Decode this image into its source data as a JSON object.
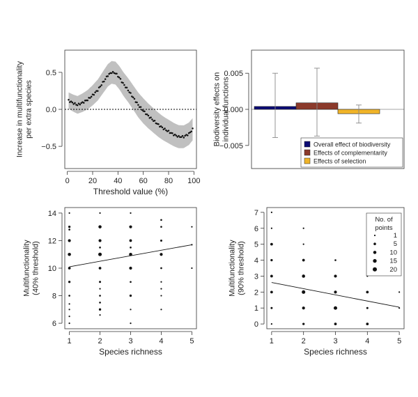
{
  "chart_data": [
    {
      "id": "a",
      "type": "line",
      "title": "",
      "xlabel": "Threshold value (%)",
      "ylabel": [
        "Increase in multifunctionality",
        "per extra species"
      ],
      "xlim": [
        -2,
        102
      ],
      "ylim": [
        -0.8,
        0.8
      ],
      "xticks": [
        0,
        20,
        40,
        60,
        80,
        100
      ],
      "yticks": [
        -0.5,
        0.0,
        0.5
      ],
      "ytick_labels": [
        "−0.5",
        "0.0",
        "0.5"
      ],
      "reference_line": 0,
      "band_color": "#c0c0c0",
      "point_color": "#111111",
      "knots": [
        [
          1,
          0.12
        ],
        [
          4,
          0.09
        ],
        [
          8,
          0.06
        ],
        [
          12,
          0.09
        ],
        [
          16,
          0.13
        ],
        [
          20,
          0.19
        ],
        [
          24,
          0.26
        ],
        [
          28,
          0.36
        ],
        [
          32,
          0.46
        ],
        [
          35,
          0.5
        ],
        [
          38,
          0.49
        ],
        [
          41,
          0.43
        ],
        [
          44,
          0.35
        ],
        [
          48,
          0.26
        ],
        [
          52,
          0.16
        ],
        [
          56,
          0.06
        ],
        [
          60,
          -0.02
        ],
        [
          64,
          -0.09
        ],
        [
          68,
          -0.15
        ],
        [
          72,
          -0.21
        ],
        [
          76,
          -0.26
        ],
        [
          80,
          -0.3
        ],
        [
          84,
          -0.34
        ],
        [
          88,
          -0.37
        ],
        [
          92,
          -0.37
        ],
        [
          96,
          -0.33
        ],
        [
          99,
          -0.27
        ]
      ],
      "band_halfwidth": [
        [
          1,
          0.11
        ],
        [
          30,
          0.15
        ],
        [
          60,
          0.17
        ],
        [
          99,
          0.15
        ]
      ]
    },
    {
      "id": "b",
      "type": "bar",
      "ylabel": [
        "Biodiversity effects on",
        "individual functions"
      ],
      "ylim": [
        -0.0082,
        0.0082
      ],
      "yticks": [
        -0.005,
        0.0,
        0.005
      ],
      "ytick_labels": [
        "−0.005",
        "0.000",
        "0.005"
      ],
      "reference_line": 0,
      "series": [
        {
          "name": "Overall effect of biodiversity",
          "value": 0.0004,
          "err_low": -0.0039,
          "err_high": 0.005,
          "color": "#0b0b74"
        },
        {
          "name": "Effects of complementarity",
          "value": 0.0009,
          "err_low": -0.0037,
          "err_high": 0.0057,
          "color": "#8b3a2b"
        },
        {
          "name": "Effects of selection",
          "value": -0.0006,
          "err_low": -0.0019,
          "err_high": 0.0006,
          "color": "#f0b429"
        }
      ],
      "legend_position": "bottom-right"
    },
    {
      "id": "c",
      "type": "scatter",
      "xlabel": "Species richness",
      "ylabel": [
        "Multifunctionality",
        "(40% threshold)"
      ],
      "xlim": [
        0.85,
        5.15
      ],
      "ylim": [
        5.6,
        14.4
      ],
      "xticks": [
        1,
        2,
        3,
        4,
        5
      ],
      "yticks": [
        6,
        8,
        10,
        12,
        14
      ],
      "fit_line": [
        [
          1,
          10.1
        ],
        [
          5,
          11.7
        ]
      ],
      "points": [
        [
          1,
          14,
          1
        ],
        [
          1,
          13,
          4
        ],
        [
          1,
          12.8,
          2
        ],
        [
          1,
          12,
          8
        ],
        [
          1,
          11,
          10
        ],
        [
          1,
          10,
          6
        ],
        [
          1,
          9,
          4
        ],
        [
          1,
          8,
          2
        ],
        [
          1,
          7.4,
          1
        ],
        [
          1,
          7,
          1
        ],
        [
          1,
          6.5,
          1
        ],
        [
          1,
          6,
          1
        ],
        [
          2,
          14,
          1
        ],
        [
          2,
          13,
          10
        ],
        [
          2,
          12,
          8
        ],
        [
          2,
          11.5,
          2
        ],
        [
          2,
          11,
          13
        ],
        [
          2,
          10,
          6
        ],
        [
          2,
          9,
          3
        ],
        [
          2,
          8.5,
          1
        ],
        [
          2,
          8,
          2
        ],
        [
          2,
          7.5,
          2
        ],
        [
          2,
          7,
          4
        ],
        [
          2,
          6.6,
          1
        ],
        [
          3,
          14,
          1
        ],
        [
          3,
          13,
          8
        ],
        [
          3,
          12,
          6
        ],
        [
          3,
          11.5,
          2
        ],
        [
          3,
          11,
          10
        ],
        [
          3,
          10,
          8
        ],
        [
          3,
          9,
          2
        ],
        [
          3,
          8,
          4
        ],
        [
          3,
          7,
          1
        ],
        [
          3,
          6,
          1
        ],
        [
          4,
          13.5,
          2
        ],
        [
          4,
          13,
          2
        ],
        [
          4,
          12,
          3
        ],
        [
          4,
          11,
          8
        ],
        [
          4,
          10,
          2
        ],
        [
          4,
          9,
          1
        ],
        [
          4,
          8.5,
          1
        ],
        [
          4,
          8,
          1
        ],
        [
          4,
          7,
          1
        ],
        [
          5,
          13,
          1
        ],
        [
          5,
          11.7,
          1
        ],
        [
          5,
          10,
          1
        ]
      ]
    },
    {
      "id": "d",
      "type": "scatter",
      "xlabel": "Species richness",
      "ylabel": [
        "Multifunctionality",
        "(90% threshold)"
      ],
      "xlim": [
        0.85,
        5.15
      ],
      "ylim": [
        -0.3,
        7.3
      ],
      "xticks": [
        1,
        2,
        3,
        4,
        5
      ],
      "yticks": [
        0,
        1,
        2,
        3,
        4,
        5,
        6,
        7
      ],
      "fit_line": [
        [
          1,
          2.6
        ],
        [
          5,
          1.05
        ]
      ],
      "points": [
        [
          1,
          7,
          1
        ],
        [
          1,
          6,
          1
        ],
        [
          1,
          5,
          6
        ],
        [
          1,
          4,
          4
        ],
        [
          1,
          3,
          6
        ],
        [
          1,
          2,
          6
        ],
        [
          1,
          1,
          3
        ],
        [
          1,
          0,
          1
        ],
        [
          2,
          6,
          1
        ],
        [
          2,
          5,
          1
        ],
        [
          2,
          4,
          6
        ],
        [
          2,
          3,
          10
        ],
        [
          2,
          2,
          13
        ],
        [
          2,
          1,
          8
        ],
        [
          2,
          0,
          4
        ],
        [
          3,
          4,
          2
        ],
        [
          3,
          3,
          8
        ],
        [
          3,
          2,
          8
        ],
        [
          3,
          1,
          13
        ],
        [
          3,
          0,
          6
        ],
        [
          4,
          3,
          1
        ],
        [
          4,
          2,
          6
        ],
        [
          4,
          1,
          3
        ],
        [
          4,
          0,
          6
        ],
        [
          5,
          2,
          1
        ],
        [
          5,
          1,
          1
        ]
      ],
      "legend": {
        "title": [
          "No. of",
          "points"
        ],
        "sizes": [
          1,
          5,
          10,
          15,
          20
        ]
      }
    }
  ]
}
